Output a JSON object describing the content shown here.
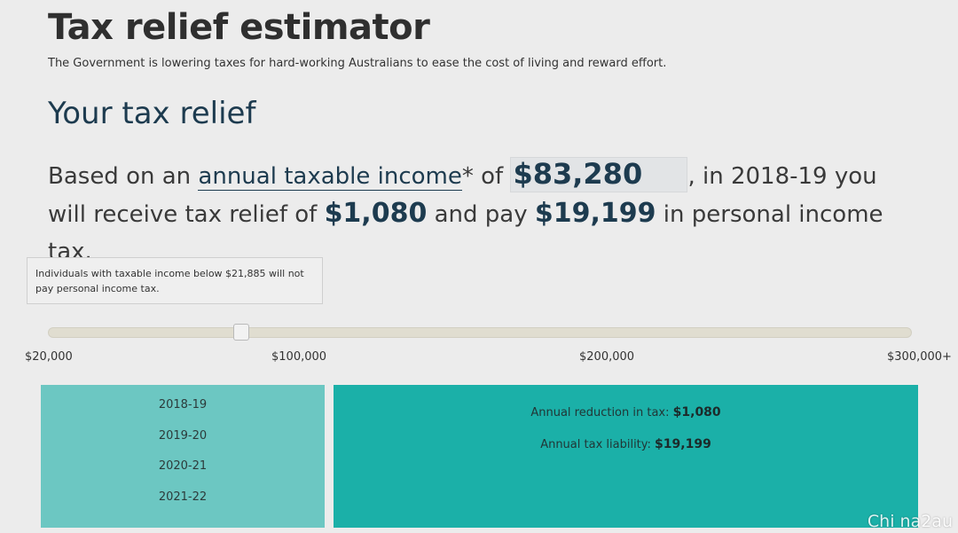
{
  "header": {
    "title": "Tax relief estimator",
    "subtitle": "The Government is lowering taxes for hard-working Australians to ease the cost of living and reward effort."
  },
  "section_heading": "Your tax relief",
  "summary": {
    "part1": "Based on an ",
    "link_label": "annual taxable income",
    "part2": "* of ",
    "income_value": "$83,280",
    "part3": ", in 2018-19 you will receive tax relief of ",
    "relief_value": "$1,080",
    "part4": " and pay ",
    "tax_value": "$19,199",
    "part5": " in personal income tax."
  },
  "tooltip": "Individuals with taxable income below $21,885 will not pay personal income tax.",
  "slider": {
    "min": 20000,
    "max": 300000,
    "value": 83280,
    "ticks": [
      "$20,000",
      "$100,000",
      "$200,000",
      "$300,000+"
    ]
  },
  "years": [
    "2018-19",
    "2019-20",
    "2020-21",
    "2021-22"
  ],
  "results": {
    "reduction_label": "Annual reduction in tax: ",
    "reduction_value": "$1,080",
    "liability_label": "Annual tax liability: ",
    "liability_value": "$19,199"
  },
  "colors": {
    "heading": "#1d3b4f",
    "years_panel": "#6cc7c2",
    "results_panel": "#1bb0a8"
  },
  "watermark": "Chi na2au"
}
